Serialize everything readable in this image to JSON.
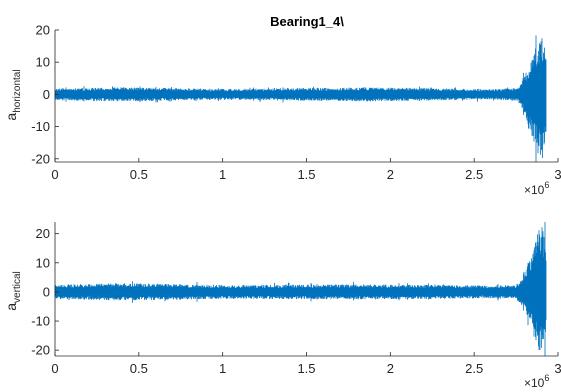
{
  "chart_data": [
    {
      "type": "line",
      "title": "Bearing1_4\\",
      "ylabel": "a",
      "ylabel_sub": "horizontal",
      "xlabel": "",
      "xlim": [
        0,
        3000000
      ],
      "ylim": [
        -21,
        20
      ],
      "x_ticks": [
        0,
        500000,
        1000000,
        1500000,
        2000000,
        2500000,
        3000000
      ],
      "x_tick_labels": [
        "0",
        "0.5",
        "1",
        "1.5",
        "2",
        "2.5",
        "3"
      ],
      "y_ticks": [
        -20,
        -10,
        0,
        10,
        20
      ],
      "y_tick_labels": [
        "-20",
        "-10",
        "0",
        "10",
        "20"
      ],
      "x_exponent_base": "×10",
      "x_exponent_power": "6",
      "grid": false,
      "series": [
        {
          "color": "#0072bd",
          "envelope": [
            {
              "x": 0,
              "min": -1.8,
              "max": 1.8
            },
            {
              "x": 400000,
              "min": -2.2,
              "max": 2.2
            },
            {
              "x": 1000000,
              "min": -1.7,
              "max": 1.7
            },
            {
              "x": 1900000,
              "min": -2.2,
              "max": 2.2
            },
            {
              "x": 2600000,
              "min": -1.6,
              "max": 1.6
            },
            {
              "x": 2760000,
              "min": -2,
              "max": 2
            },
            {
              "x": 2790000,
              "min": -5,
              "max": 5
            },
            {
              "x": 2820000,
              "min": -11,
              "max": 8
            },
            {
              "x": 2850000,
              "min": -14,
              "max": 12
            },
            {
              "x": 2880000,
              "min": -19,
              "max": 17
            },
            {
              "x": 2905000,
              "min": -21,
              "max": 18
            },
            {
              "x": 2930000,
              "min": -15,
              "max": 14
            }
          ]
        }
      ]
    },
    {
      "type": "line",
      "title": "",
      "ylabel": "a",
      "ylabel_sub": "vertical",
      "xlabel": "",
      "xlim": [
        0,
        3000000
      ],
      "ylim": [
        -22,
        24
      ],
      "x_ticks": [
        0,
        500000,
        1000000,
        1500000,
        2000000,
        2500000,
        3000000
      ],
      "x_tick_labels": [
        "0",
        "0.5",
        "1",
        "1.5",
        "2",
        "2.5",
        "3"
      ],
      "y_ticks": [
        -20,
        -10,
        0,
        10,
        20
      ],
      "y_tick_labels": [
        "-20",
        "-10",
        "0",
        "10",
        "20"
      ],
      "x_exponent_base": "×10",
      "x_exponent_power": "6",
      "grid": false,
      "series": [
        {
          "color": "#0072bd",
          "envelope": [
            {
              "x": 0,
              "min": -2.5,
              "max": 2.5
            },
            {
              "x": 400000,
              "min": -3,
              "max": 3
            },
            {
              "x": 1000000,
              "min": -2.4,
              "max": 2.4
            },
            {
              "x": 1900000,
              "min": -2.6,
              "max": 2.6
            },
            {
              "x": 2600000,
              "min": -2.2,
              "max": 2.2
            },
            {
              "x": 2750000,
              "min": -2.5,
              "max": 2.5
            },
            {
              "x": 2790000,
              "min": -5,
              "max": 5
            },
            {
              "x": 2820000,
              "min": -9,
              "max": 10
            },
            {
              "x": 2850000,
              "min": -14,
              "max": 14
            },
            {
              "x": 2880000,
              "min": -20,
              "max": 22
            },
            {
              "x": 2905000,
              "min": -22,
              "max": 24
            },
            {
              "x": 2930000,
              "min": -16,
              "max": 17
            }
          ]
        }
      ]
    }
  ]
}
